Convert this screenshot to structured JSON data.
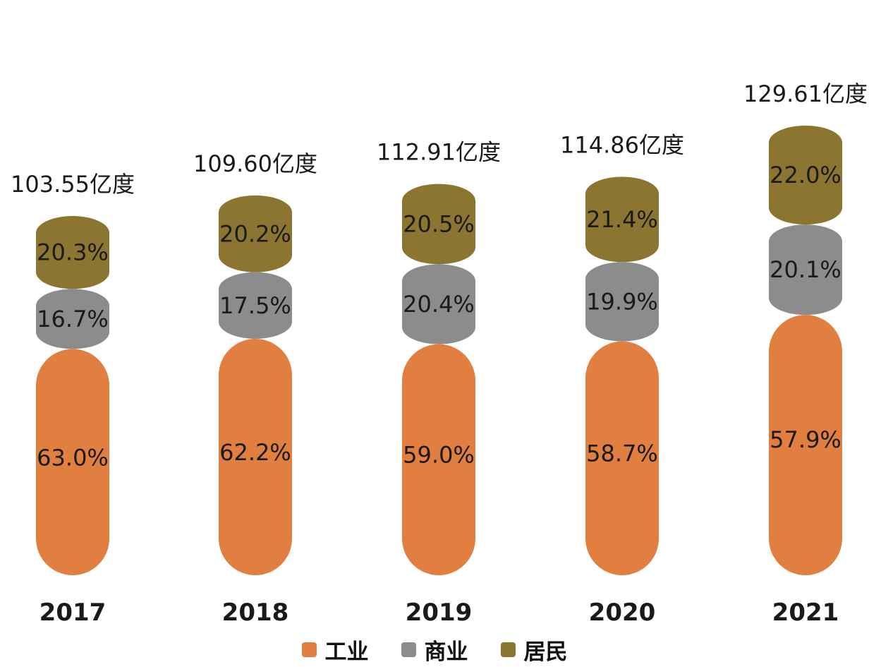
{
  "chart_data": {
    "type": "bar",
    "stacked": true,
    "normalized": true,
    "categories": [
      "2017",
      "2018",
      "2019",
      "2020",
      "2021"
    ],
    "totals": [
      103.55,
      109.6,
      112.91,
      114.86,
      129.61
    ],
    "total_labels": [
      "103.55亿度",
      "109.60亿度",
      "112.91亿度",
      "114.86亿度",
      "129.61亿度"
    ],
    "series": [
      {
        "name": "工业",
        "color": "#E07F3F",
        "values": [
          63.0,
          62.2,
          59.0,
          58.7,
          57.9
        ],
        "labels": [
          "63.0%",
          "62.2%",
          "59.0%",
          "58.7%",
          "57.9%"
        ]
      },
      {
        "name": "商业",
        "color": "#8C8C8C",
        "values": [
          16.7,
          17.5,
          20.4,
          19.9,
          20.1
        ],
        "labels": [
          "16.7%",
          "17.5%",
          "20.4%",
          "19.9%",
          "20.1%"
        ]
      },
      {
        "name": "居民",
        "color": "#8C7530",
        "values": [
          20.3,
          20.2,
          20.5,
          21.4,
          22.0
        ],
        "labels": [
          "20.3%",
          "20.2%",
          "20.5%",
          "21.4%",
          "22.0%"
        ]
      }
    ],
    "legend": {
      "position": "bottom"
    },
    "grid": false,
    "axes": false
  }
}
